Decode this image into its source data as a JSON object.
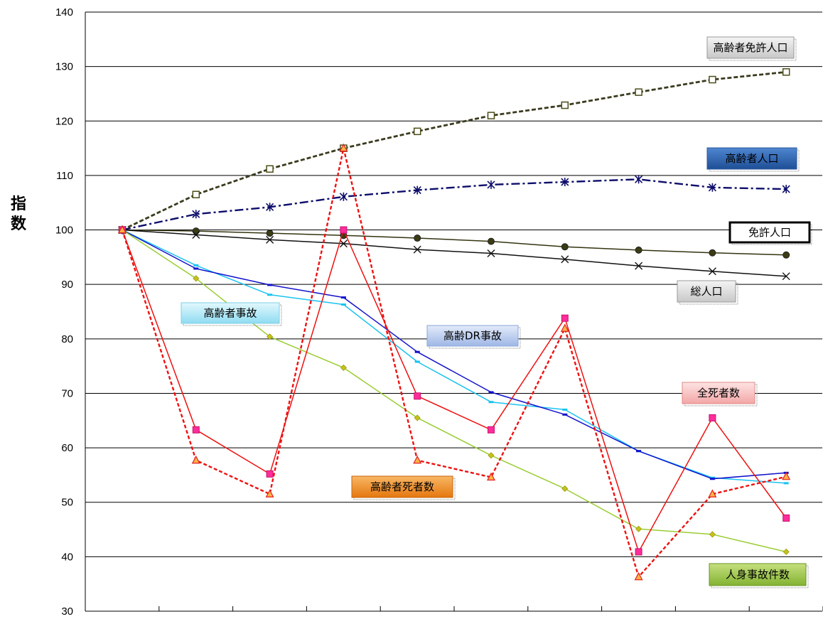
{
  "chart_data": {
    "type": "line",
    "ylabel": "指数",
    "ylim": [
      30,
      140
    ],
    "yticks": [
      "30",
      "40",
      "50",
      "60",
      "70",
      "80",
      "90",
      "100",
      "110",
      "120",
      "130",
      "140"
    ],
    "grid": true,
    "x": [
      1,
      2,
      3,
      4,
      5,
      6,
      7,
      8,
      9,
      10
    ],
    "series": [
      {
        "name": "高齢者免許人口",
        "color": "#3b3b1f",
        "dash": "6,3",
        "marker": "square-open",
        "values": [
          100,
          106.5,
          111.2,
          115.0,
          118.1,
          121.0,
          122.9,
          125.3,
          127.6,
          129.0
        ]
      },
      {
        "name": "高齢者人口",
        "color": "#0d0d6b",
        "dash": "12,4,3,4",
        "marker": "asterisk",
        "values": [
          100,
          102.9,
          104.2,
          106.1,
          107.3,
          108.3,
          108.8,
          109.3,
          107.8,
          107.5
        ]
      },
      {
        "name": "免許人口",
        "color": "#333310",
        "dash": "",
        "marker": "circle",
        "values": [
          100,
          99.8,
          99.4,
          99.0,
          98.5,
          97.9,
          96.9,
          96.3,
          95.8,
          95.4
        ]
      },
      {
        "name": "総人口",
        "color": "#111111",
        "dash": "",
        "marker": "x",
        "values": [
          100,
          99.1,
          98.2,
          97.5,
          96.4,
          95.7,
          94.6,
          93.4,
          92.4,
          91.5
        ]
      },
      {
        "name": "高齢者事故",
        "color": "#19c3f0",
        "dash": "",
        "marker": "dash",
        "values": [
          100,
          93.5,
          88.1,
          86.3,
          75.8,
          68.4,
          67.0,
          59.4,
          54.5,
          53.5
        ]
      },
      {
        "name": "高齢DR事故",
        "color": "#1111cc",
        "dash": "",
        "marker": "dash",
        "values": [
          100,
          92.9,
          89.9,
          87.6,
          77.6,
          70.2,
          66.1,
          59.4,
          54.3,
          55.4
        ]
      },
      {
        "name": "人身事故件数",
        "color": "#9acd32",
        "dash": "",
        "marker": "diamond",
        "values": [
          100,
          91.1,
          80.4,
          74.7,
          65.5,
          58.6,
          52.5,
          45.1,
          44.1,
          40.9
        ]
      },
      {
        "name": "全死者数",
        "color": "#ee1111",
        "dash": "",
        "marker": "square-magenta",
        "values": [
          100,
          63.3,
          55.2,
          100.0,
          69.5,
          63.3,
          83.8,
          40.9,
          65.5,
          47.1
        ]
      },
      {
        "name": "高齢者死者数",
        "color": "#ee1111",
        "dash": "5,3",
        "marker": "triangle",
        "values": [
          100,
          57.7,
          51.5,
          115.0,
          57.7,
          54.6,
          81.9,
          36.3,
          51.5,
          54.7
        ]
      }
    ],
    "legend_labels": [
      {
        "text": "高齢者免許人口",
        "style": "gray"
      },
      {
        "text": "高齢者人口",
        "style": "blue"
      },
      {
        "text": "免許人口",
        "style": "outline"
      },
      {
        "text": "総人口",
        "style": "gray"
      },
      {
        "text": "高齢者事故",
        "style": "cyan"
      },
      {
        "text": "高齢DR事故",
        "style": "lightblue"
      },
      {
        "text": "全死者数",
        "style": "pink"
      },
      {
        "text": "高齢者死者数",
        "style": "orange"
      },
      {
        "text": "人身事故件数",
        "style": "green"
      }
    ]
  }
}
